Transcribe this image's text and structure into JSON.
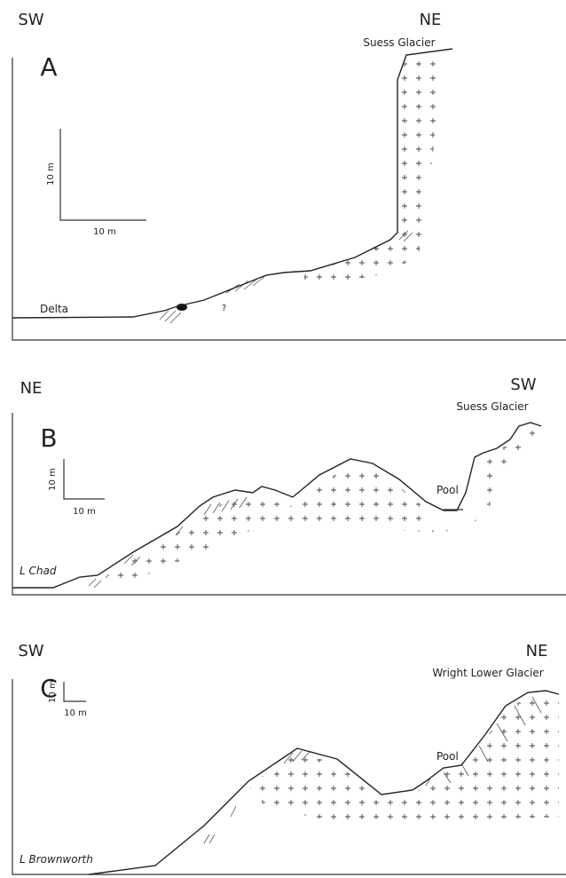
{
  "panels": [
    {
      "letter": "A",
      "left_direction": "SW",
      "right_direction": "NE",
      "glacier": "Suess Glacier",
      "lake": "Delta",
      "scale_vertical": "10 m",
      "scale_horizontal": "10 m",
      "uncertain": "?"
    },
    {
      "letter": "B",
      "left_direction": "NE",
      "right_direction": "SW",
      "glacier": "Suess Glacier",
      "lake": "L Chad",
      "pool": "Pool",
      "scale_vertical": "10 m",
      "scale_horizontal": "10 m"
    },
    {
      "letter": "C",
      "left_direction": "SW",
      "right_direction": "NE",
      "glacier": "Wright Lower Glacier",
      "lake": "L Brownworth",
      "pool": "Pool",
      "scale_vertical": "10 m",
      "scale_horizontal": "10 m"
    }
  ]
}
